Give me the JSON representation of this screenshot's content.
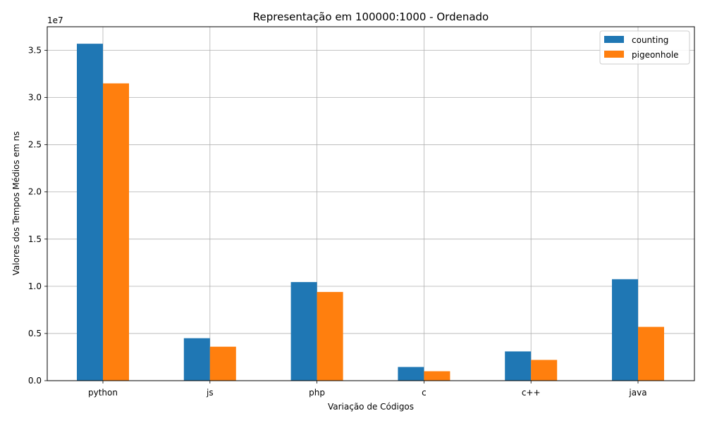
{
  "chart_data": {
    "type": "bar",
    "title": "Representação em 100000:1000 - Ordenado",
    "xlabel": "Variação de Códigos",
    "ylabel": "Valores dos Tempos Médios em ns",
    "y_multiplier_label": "1e7",
    "y_scale_factor": 10000000,
    "ylim": [
      0,
      37500000
    ],
    "y_ticks": [
      0,
      5000000,
      10000000,
      15000000,
      20000000,
      25000000,
      30000000,
      35000000
    ],
    "y_tick_labels": [
      "0.0",
      "0.5",
      "1.0",
      "1.5",
      "2.0",
      "2.5",
      "3.0",
      "3.5"
    ],
    "categories": [
      "python",
      "js",
      "php",
      "c",
      "c++",
      "java"
    ],
    "series": [
      {
        "name": "counting",
        "color": "#1f77b4",
        "values": [
          35700000,
          4500000,
          10450000,
          1450000,
          3100000,
          10750000
        ]
      },
      {
        "name": "pigeonhole",
        "color": "#ff7f0e",
        "values": [
          31500000,
          3600000,
          9400000,
          1000000,
          2200000,
          5700000
        ]
      }
    ],
    "grid": true,
    "legend_position": "top-right"
  }
}
